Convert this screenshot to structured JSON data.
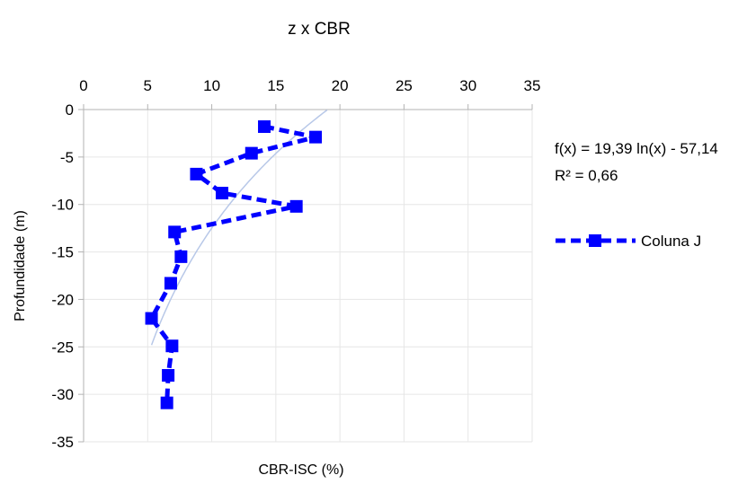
{
  "chart_data": {
    "type": "scatter",
    "title": "z x CBR",
    "xlabel": "CBR-ISC (%)",
    "ylabel": "Profundidade (m)",
    "xlim": [
      0,
      35
    ],
    "ylim": [
      -35,
      0
    ],
    "x_ticks": [
      "0",
      "5",
      "10",
      "15",
      "20",
      "25",
      "30",
      "35"
    ],
    "y_ticks": [
      "0",
      "-5",
      "-10",
      "-15",
      "-20",
      "-25",
      "-30",
      "-35"
    ],
    "grid": true,
    "legend_position": "right",
    "series": [
      {
        "name": "Coluna J",
        "color": "#0000ff",
        "marker": "square",
        "line": "dashed",
        "points": [
          {
            "x": 14.1,
            "y": -1.8
          },
          {
            "x": 18.1,
            "y": -2.9
          },
          {
            "x": 13.1,
            "y": -4.6
          },
          {
            "x": 8.8,
            "y": -6.8
          },
          {
            "x": 10.8,
            "y": -8.8
          },
          {
            "x": 16.6,
            "y": -10.2
          },
          {
            "x": 7.1,
            "y": -12.9
          },
          {
            "x": 7.6,
            "y": -15.5
          },
          {
            "x": 6.8,
            "y": -18.3
          },
          {
            "x": 5.3,
            "y": -22.0
          },
          {
            "x": 6.9,
            "y": -24.9
          },
          {
            "x": 6.6,
            "y": -28.0
          },
          {
            "x": 6.5,
            "y": -30.9
          }
        ]
      }
    ],
    "trendline": {
      "type": "logarithmic",
      "a": 19.39,
      "b": -57.14,
      "color": "#b8c8e8",
      "x_range": [
        5.3,
        19.0
      ],
      "equation_label": "f(x) = 19,39 ln(x) - 57,14",
      "r2_label": "R² = 0,66"
    }
  }
}
